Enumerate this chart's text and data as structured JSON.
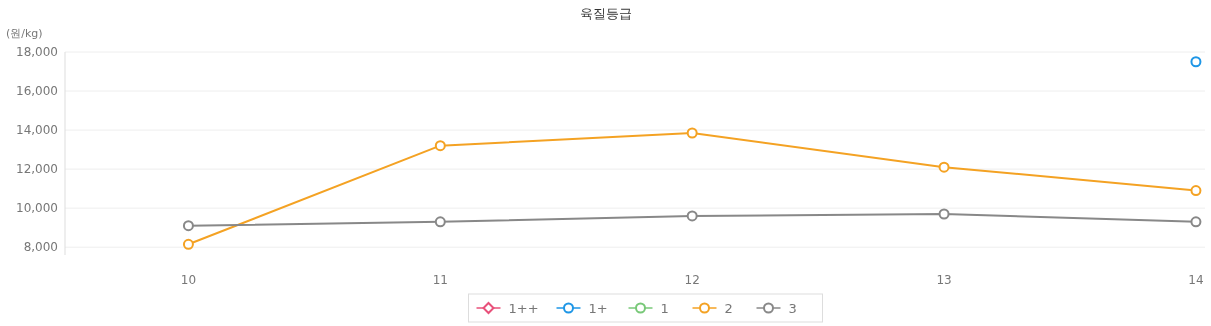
{
  "chart_data": {
    "type": "line",
    "title": "육질등급",
    "ylabel": "(원/kg)",
    "categories": [
      "10",
      "11",
      "12",
      "13",
      "14"
    ],
    "series": [
      {
        "name": "1++",
        "color": "#e8507a",
        "marker": "diamond",
        "values": [
          null,
          null,
          null,
          null,
          null
        ]
      },
      {
        "name": "1+",
        "color": "#1e96e6",
        "values": [
          null,
          null,
          null,
          null,
          17500
        ]
      },
      {
        "name": "1",
        "color": "#78c878",
        "values": [
          null,
          null,
          null,
          null,
          null
        ]
      },
      {
        "name": "2",
        "color": "#f4a223",
        "values": [
          8150,
          13200,
          13850,
          12100,
          10900
        ]
      },
      {
        "name": "3",
        "color": "#888888",
        "values": [
          9100,
          9300,
          9600,
          9700,
          9300
        ]
      }
    ],
    "ylim": [
      7600,
      18000
    ],
    "yticks": [
      {
        "value": 8000,
        "label": "8,000"
      },
      {
        "value": 10000,
        "label": "10,000"
      },
      {
        "value": 12000,
        "label": "12,000"
      },
      {
        "value": 14000,
        "label": "14,000"
      },
      {
        "value": 16000,
        "label": "16,000"
      },
      {
        "value": 18000,
        "label": "18,000"
      }
    ],
    "grid": "y",
    "legend": "bottom",
    "marker": "circle",
    "line_style": "solid"
  }
}
